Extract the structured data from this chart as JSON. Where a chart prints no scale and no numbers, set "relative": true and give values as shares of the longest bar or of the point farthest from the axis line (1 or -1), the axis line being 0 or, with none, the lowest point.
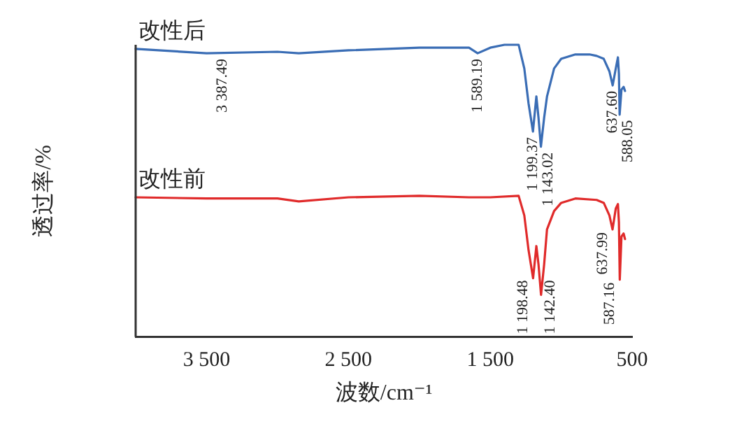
{
  "chart_data": {
    "type": "line",
    "xlabel": "波数/cm⁻¹",
    "ylabel": "透过率/%",
    "relative": true,
    "xlim": [
      4000,
      500
    ],
    "xticks": [
      {
        "value": 3500,
        "label": "3 500"
      },
      {
        "value": 2500,
        "label": "2 500"
      },
      {
        "value": 1500,
        "label": "1 500"
      },
      500
    ],
    "grid": false,
    "legend": false,
    "marker": "none",
    "line_style": "solid",
    "series": [
      {
        "name": "改性后",
        "color": "#3a6db5",
        "x": [
          4000,
          3500,
          3000,
          2850,
          2500,
          2000,
          1650,
          1589,
          1500,
          1400,
          1300,
          1260,
          1230,
          1199,
          1175,
          1160,
          1143,
          1120,
          1100,
          1050,
          1000,
          900,
          800,
          750,
          700,
          660,
          637,
          615,
          600,
          593,
          588,
          575,
          560,
          550
        ],
        "values": [
          0.986,
          0.971,
          0.976,
          0.971,
          0.981,
          0.99,
          0.99,
          0.971,
          0.99,
          1,
          1,
          0.919,
          0.799,
          0.703,
          0.823,
          0.751,
          0.651,
          0.751,
          0.823,
          0.919,
          0.952,
          0.967,
          0.967,
          0.962,
          0.952,
          0.909,
          0.861,
          0.919,
          0.957,
          0.9,
          0.761,
          0.847,
          0.856,
          0.842
        ]
      },
      {
        "name": "改性前",
        "color": "#e02a2a",
        "x": [
          4000,
          3500,
          3000,
          2850,
          2500,
          2000,
          1650,
          1500,
          1300,
          1260,
          1230,
          1198,
          1175,
          1160,
          1142,
          1120,
          1100,
          1050,
          1000,
          900,
          750,
          700,
          660,
          638,
          615,
          600,
          593,
          587,
          575,
          560,
          550
        ],
        "values": [
          0.478,
          0.474,
          0.474,
          0.464,
          0.478,
          0.483,
          0.478,
          0.478,
          0.483,
          0.416,
          0.297,
          0.201,
          0.311,
          0.249,
          0.144,
          0.249,
          0.368,
          0.431,
          0.459,
          0.474,
          0.469,
          0.459,
          0.416,
          0.368,
          0.44,
          0.455,
          0.392,
          0.196,
          0.344,
          0.354,
          0.335
        ]
      }
    ],
    "annotations": [
      {
        "text": "3 387.49",
        "x": 3387.49,
        "y": 0.971
      },
      {
        "text": "1 589.19",
        "x": 1589.19,
        "y": 0.971
      },
      {
        "text": "1 199.37",
        "x": 1199.37,
        "y": 0.703
      },
      {
        "text": "1 143.02",
        "x": 1143.02,
        "y": 0.651
      },
      {
        "text": "637.60",
        "x": 637.6,
        "y": 0.861
      },
      {
        "text": "588.05",
        "x": 588.05,
        "y": 0.761
      },
      {
        "text": "1 198.48",
        "x": 1198.48,
        "y": 0.201
      },
      {
        "text": "1 142.40",
        "x": 1142.4,
        "y": 0.144
      },
      {
        "text": "637.99",
        "x": 637.99,
        "y": 0.368
      },
      {
        "text": "587.16",
        "x": 587.16,
        "y": 0.196
      }
    ]
  }
}
